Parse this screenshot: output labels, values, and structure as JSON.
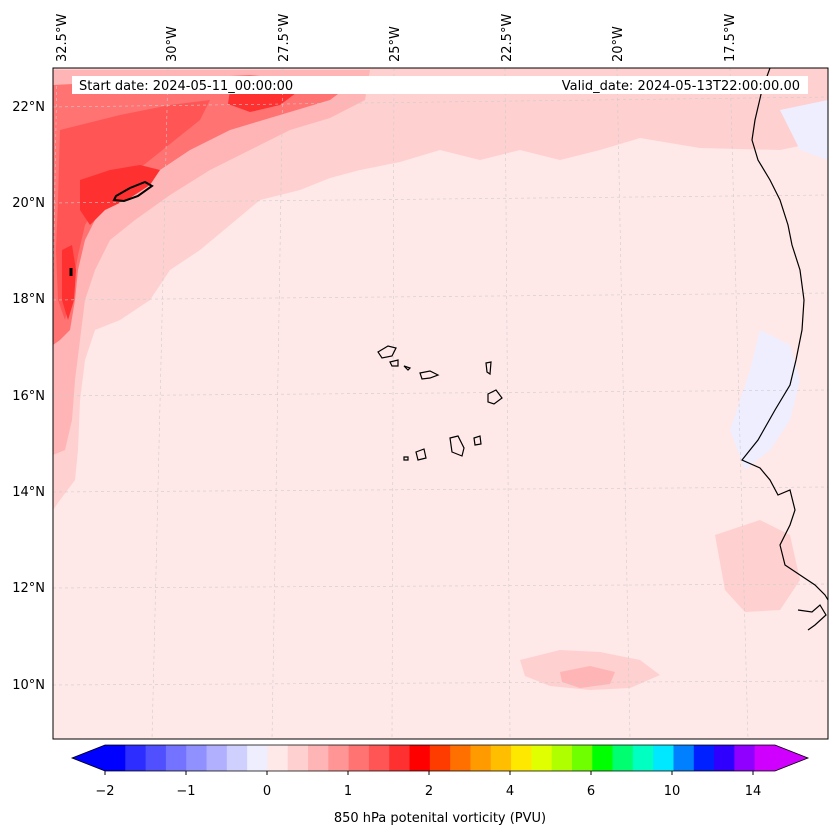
{
  "map": {
    "start_date_label": "Start date: 2024-05-11_00:00:00",
    "valid_date_label": "Valid_date: 2024-05-13T22:00:00.00",
    "lon_labels": [
      "32.5°W",
      "30°W",
      "27.5°W",
      "25°W",
      "22.5°W",
      "20°W",
      "17.5°W"
    ],
    "lat_labels": [
      "22°N",
      "20°N",
      "18°N",
      "16°N",
      "14°N",
      "12°N",
      "10°N"
    ]
  },
  "colorbar": {
    "title": "850 hPa potenital vorticity (PVU)",
    "tick_labels": [
      "−2",
      "−1",
      "0",
      "1",
      "2",
      "4",
      "6",
      "10",
      "14"
    ],
    "colors": [
      "#0000ff",
      "#2d2dff",
      "#5050ff",
      "#7373ff",
      "#9090ff",
      "#b0b0ff",
      "#d0d0ff",
      "#eeeeff",
      "#ffe8e8",
      "#ffd0d0",
      "#ffb5b5",
      "#ff9595",
      "#ff7373",
      "#ff5555",
      "#ff3030",
      "#ff0000",
      "#ff3c00",
      "#ff7000",
      "#ff9a00",
      "#ffbe00",
      "#ffe800",
      "#e0ff00",
      "#b0ff00",
      "#70ff00",
      "#00ff00",
      "#00ff70",
      "#00ffc0",
      "#00e8ff",
      "#0080ff",
      "#0020ff",
      "#3000ff",
      "#9000ff",
      "#d000ff"
    ]
  },
  "colors": {
    "background_field": "#ffe8e8",
    "coastline": "#000000"
  }
}
